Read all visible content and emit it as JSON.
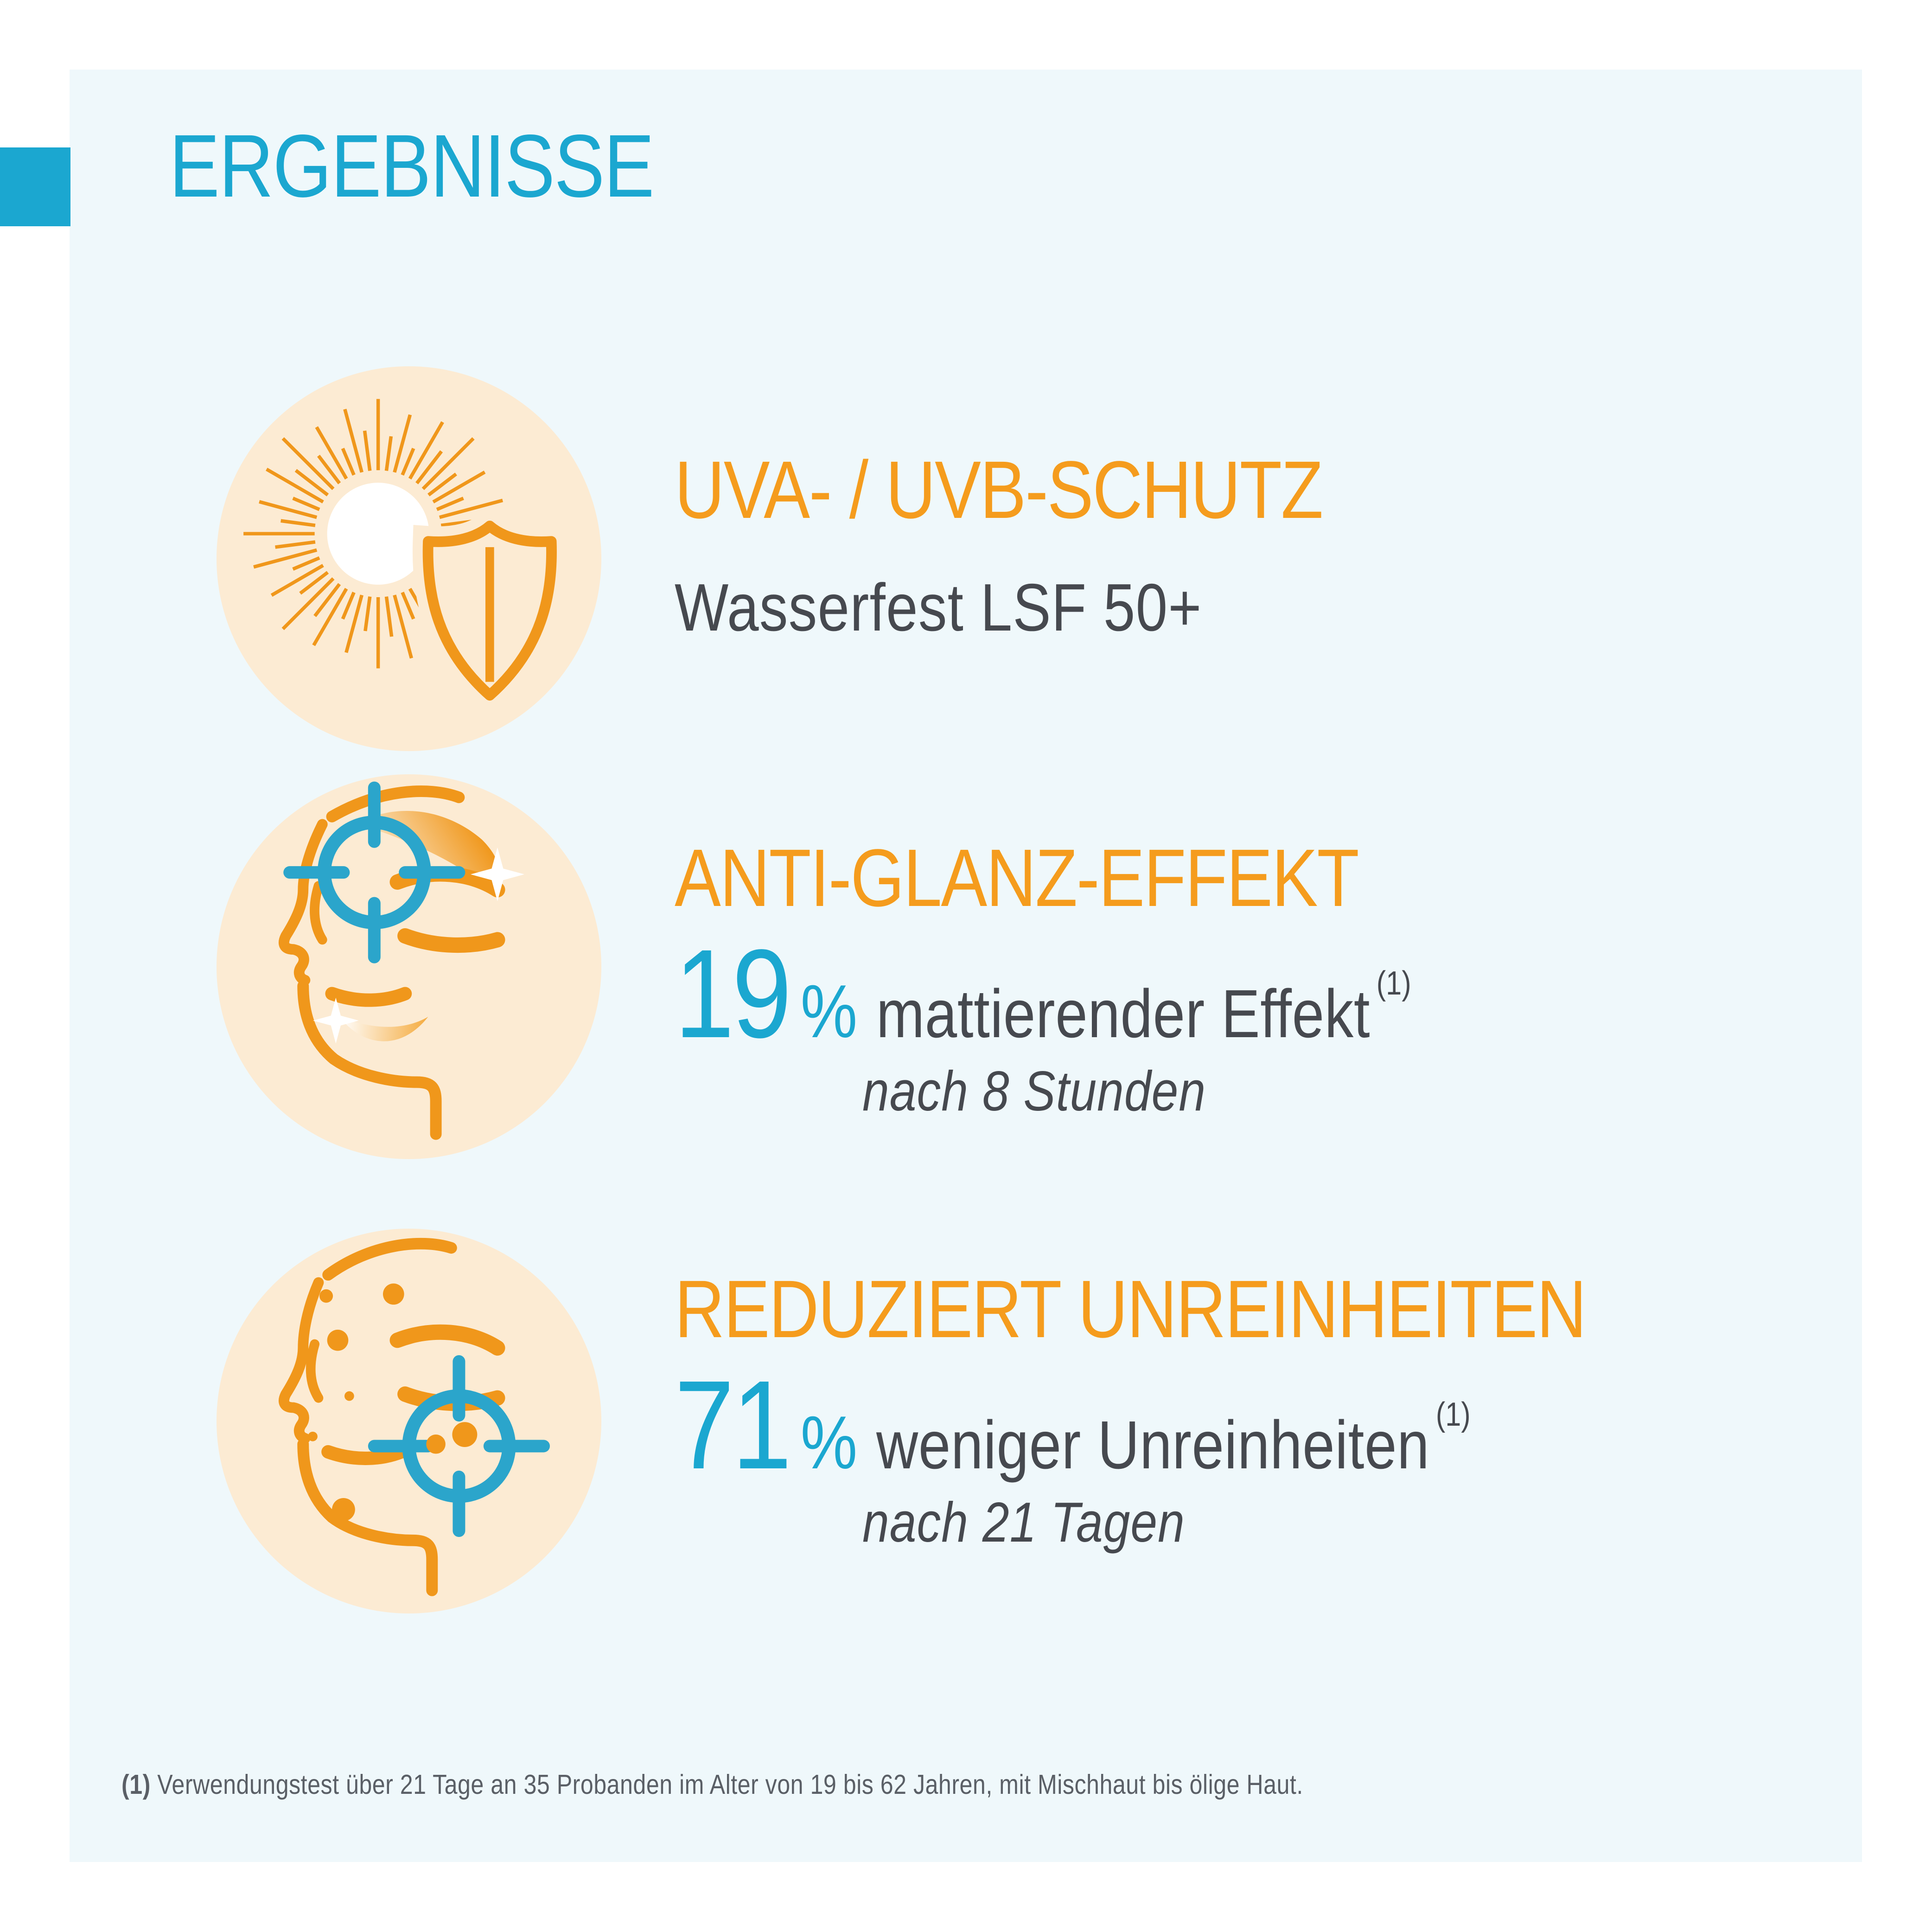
{
  "page_title": "ERGEBNISSE",
  "colors": {
    "teal_accent": "#1BA7D0",
    "orange_accent": "#F59C1D",
    "panel_background": "#EFF8FB",
    "icon_circle_peach": "#FCEBD3",
    "body_text": "#46494F"
  },
  "sections": [
    {
      "icon": "sun-shield-icon",
      "title": "UVA- / UVB-SCHUTZ",
      "body": "Wasserfest LSF 50+"
    },
    {
      "icon": "face-target-forehead-icon",
      "title": "ANTI-GLANZ-EFFEKT",
      "stat_value": "19",
      "stat_unit": "%",
      "stat_text": "mattierender Effekt",
      "stat_sup": "(1)",
      "stat_note": "nach 8 Stunden"
    },
    {
      "icon": "face-target-chin-icon",
      "title": "REDUZIERT UNREINHEITEN",
      "stat_value": "71",
      "stat_unit": "%",
      "stat_text": "weniger Unreinheiten",
      "stat_sup": "(1)",
      "stat_note": "nach 21 Tagen"
    }
  ],
  "footnote": {
    "marker": "(1)",
    "text": "Verwendungstest über 21 Tage an 35 Probanden im Alter von 19 bis 62 Jahren, mit Mischhaut bis ölige Haut."
  }
}
